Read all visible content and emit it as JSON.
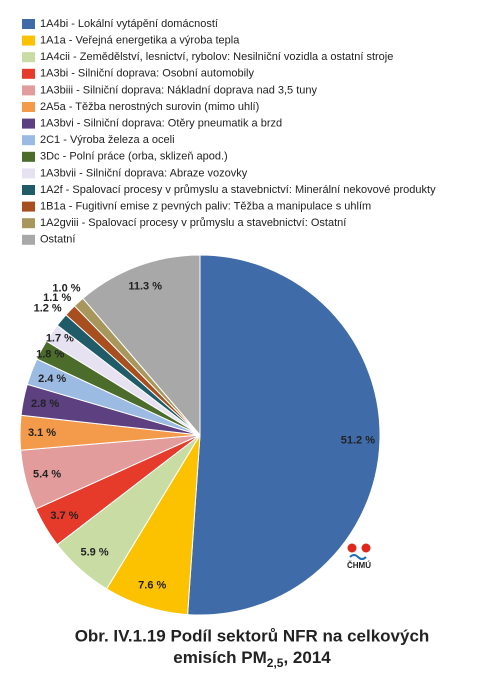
{
  "chart_data": {
    "type": "pie",
    "categories": [
      "1A4bi - Lokální vytápění domácností",
      "1A1a - Veřejná energetika a výroba tepla",
      "1A4cii - Zemědělství, lesnictví, rybolov: Nesilniční vozidla a ostatní stroje",
      "1A3bi - Silniční doprava: Osobní automobily",
      "1A3biii - Silniční doprava: Nákladní doprava nad 3,5 tuny",
      "2A5a - Těžba nerostných surovin (mimo uhlí)",
      "1A3bvi - Silniční doprava: Otěry pneumatik a brzd",
      "2C1 - Výroba železa a oceli",
      "3Dc - Polní práce (orba, sklizeň apod.)",
      "1A3bvii - Silniční doprava: Abraze vozovky",
      "1A2f - Spalovací procesy v průmyslu a stavebnictví: Minerální nekovové produkty",
      "1B1a - Fugitivní emise z pevných paliv: Těžba a manipulace s uhlím",
      "1A2gviii - Spalovací procesy v průmyslu a stavebnictví: Ostatní",
      "Ostatní"
    ],
    "values": [
      51.2,
      7.6,
      5.9,
      3.7,
      5.4,
      3.1,
      2.8,
      2.4,
      1.8,
      1.7,
      1.2,
      1.1,
      1.0,
      11.3
    ],
    "value_labels": [
      "51.2 %",
      "7.6 %",
      "5.9 %",
      "3.7 %",
      "5.4 %",
      "3.1 %",
      "2.8 %",
      "2.4 %",
      "1.8 %",
      "1.7 %",
      "1.2 %",
      "1.1 %",
      "1.0 %",
      "11.3 %"
    ],
    "colors": [
      "#3f6ba8",
      "#fcc200",
      "#c8dca4",
      "#e63b2b",
      "#e29c9c",
      "#f39a4b",
      "#5c4080",
      "#9cbbe2",
      "#4b6c2b",
      "#e6e2f2",
      "#1f5c68",
      "#a84f20",
      "#a7975c",
      "#a8a8a8"
    ],
    "title_line1": "Obr. IV.1.19  Podíl sektorů NFR na celkových",
    "title_line2": "emisích PM",
    "title_subscript": "2,5",
    "title_suffix": ", 2014",
    "logo_text": "ČHMÚ"
  }
}
